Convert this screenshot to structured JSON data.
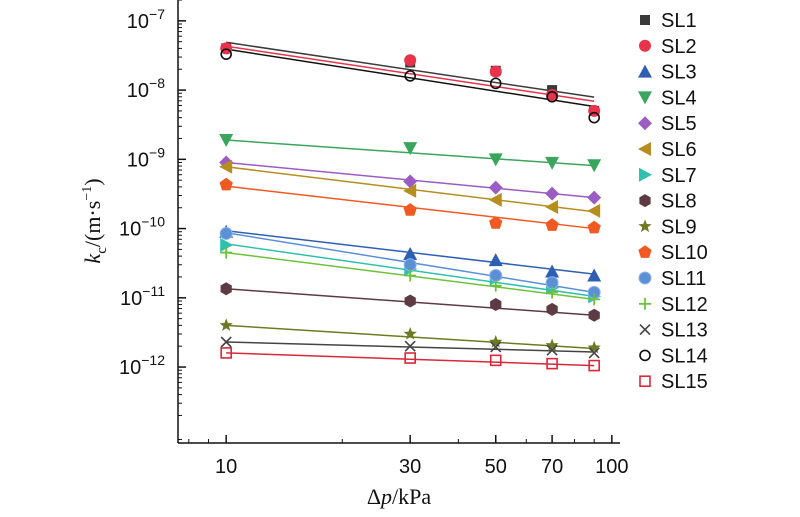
{
  "chart_data": {
    "type": "scatter",
    "xlabel": "Δp/kPa",
    "ylabel": "kc/(m·s−1)",
    "xscale": "log",
    "yscale": "log",
    "xlim": [
      7.5,
      105
    ],
    "ylim": [
      8e-14,
      2e-07
    ],
    "x_ticks": [
      10,
      30,
      50,
      70,
      100
    ],
    "y_ticks": [
      {
        "value": 1e-07,
        "mantissa": "10",
        "exp": "−7"
      },
      {
        "value": 1e-08,
        "mantissa": "10",
        "exp": "−8"
      },
      {
        "value": 1e-09,
        "mantissa": "10",
        "exp": "−9"
      },
      {
        "value": 1e-10,
        "mantissa": "10",
        "exp": "−10"
      },
      {
        "value": 1e-11,
        "mantissa": "10",
        "exp": "−11"
      },
      {
        "value": 1e-12,
        "mantissa": "10",
        "exp": "−12"
      }
    ],
    "legend_position": "right",
    "x": [
      10,
      30,
      50,
      70,
      90
    ],
    "series": [
      {
        "name": "SL1",
        "marker": "square",
        "color": "#3a3a3a",
        "values": [
          4e-08,
          2.5e-08,
          1.9e-08,
          1e-08,
          5e-09
        ],
        "fit": [
          4.9e-08,
          7.9e-09
        ]
      },
      {
        "name": "SL2",
        "marker": "circle",
        "color": "#e8334a",
        "values": [
          4e-08,
          2.7e-08,
          1.85e-08,
          8.5e-09,
          5e-09
        ],
        "fit": [
          4.3e-08,
          6.9e-09
        ]
      },
      {
        "name": "SL3",
        "marker": "triangle-up",
        "color": "#2f5fb3",
        "values": [
          9e-11,
          4.3e-11,
          3.5e-11,
          2.4e-11,
          2.1e-11
        ],
        "fit": [
          9.3e-11,
          2.2e-11
        ]
      },
      {
        "name": "SL4",
        "marker": "triangle-down",
        "color": "#3aa55c",
        "values": [
          1.9e-09,
          1.45e-09,
          1e-09,
          8.9e-10,
          8.2e-10
        ],
        "fit": [
          1.9e-09,
          8.1e-10
        ]
      },
      {
        "name": "SL5",
        "marker": "diamond",
        "color": "#9b5cc4",
        "values": [
          9e-10,
          4.8e-10,
          3.9e-10,
          3.2e-10,
          2.8e-10
        ],
        "fit": [
          9e-10,
          2.8e-10
        ]
      },
      {
        "name": "SL6",
        "marker": "triangle-left",
        "color": "#b58e1e",
        "values": [
          7.8e-10,
          3.5e-10,
          2.6e-10,
          2.05e-10,
          1.8e-10
        ],
        "fit": [
          7.8e-10,
          1.75e-10
        ]
      },
      {
        "name": "SL7",
        "marker": "triangle-right",
        "color": "#30c0b0",
        "values": [
          5.8e-11,
          2.6e-11,
          1.9e-11,
          1.4e-11,
          1.05e-11
        ],
        "fit": [
          6e-11,
          1.05e-11
        ]
      },
      {
        "name": "SL8",
        "marker": "hexagon",
        "color": "#5e3a45",
        "values": [
          1.35e-11,
          9e-12,
          8e-12,
          6.8e-12,
          5.6e-12
        ],
        "fit": [
          1.35e-11,
          5.6e-12
        ]
      },
      {
        "name": "SL9",
        "marker": "star",
        "color": "#6d7a22",
        "values": [
          4e-12,
          3e-12,
          2.3e-12,
          2.05e-12,
          1.9e-12
        ],
        "fit": [
          4e-12,
          1.85e-12
        ]
      },
      {
        "name": "SL10",
        "marker": "pentagon",
        "color": "#f05a22",
        "values": [
          4.3e-10,
          1.85e-10,
          1.2e-10,
          1.12e-10,
          1.03e-10
        ],
        "fit": [
          4.1e-10,
          1e-10
        ]
      },
      {
        "name": "SL11",
        "marker": "sphere",
        "color": "#5b8fd6",
        "values": [
          8.5e-11,
          3e-11,
          2.1e-11,
          1.65e-11,
          1.2e-11
        ],
        "fit": [
          8.7e-11,
          1.2e-11
        ]
      },
      {
        "name": "SL12",
        "marker": "plus",
        "color": "#6cc23a",
        "values": [
          4.5e-11,
          2.1e-11,
          1.5e-11,
          1.2e-11,
          9.5e-12
        ],
        "fit": [
          4.5e-11,
          9.5e-12
        ]
      },
      {
        "name": "SL13",
        "marker": "cross",
        "color": "#444444",
        "values": [
          2.3e-12,
          2e-12,
          1.95e-12,
          1.75e-12,
          1.6e-12
        ],
        "fit": [
          2.3e-12,
          1.65e-12
        ]
      },
      {
        "name": "SL14",
        "marker": "circle-open",
        "color": "#111111",
        "values": [
          3.3e-08,
          1.6e-08,
          1.25e-08,
          8e-09,
          4e-09
        ],
        "fit": [
          3.9e-08,
          5.8e-09
        ]
      },
      {
        "name": "SL15",
        "marker": "square-open",
        "color": "#d8283a",
        "values": [
          1.6e-12,
          1.35e-12,
          1.25e-12,
          1.12e-12,
          1.05e-12
        ],
        "fit": [
          1.6e-12,
          1.05e-12
        ]
      }
    ]
  }
}
